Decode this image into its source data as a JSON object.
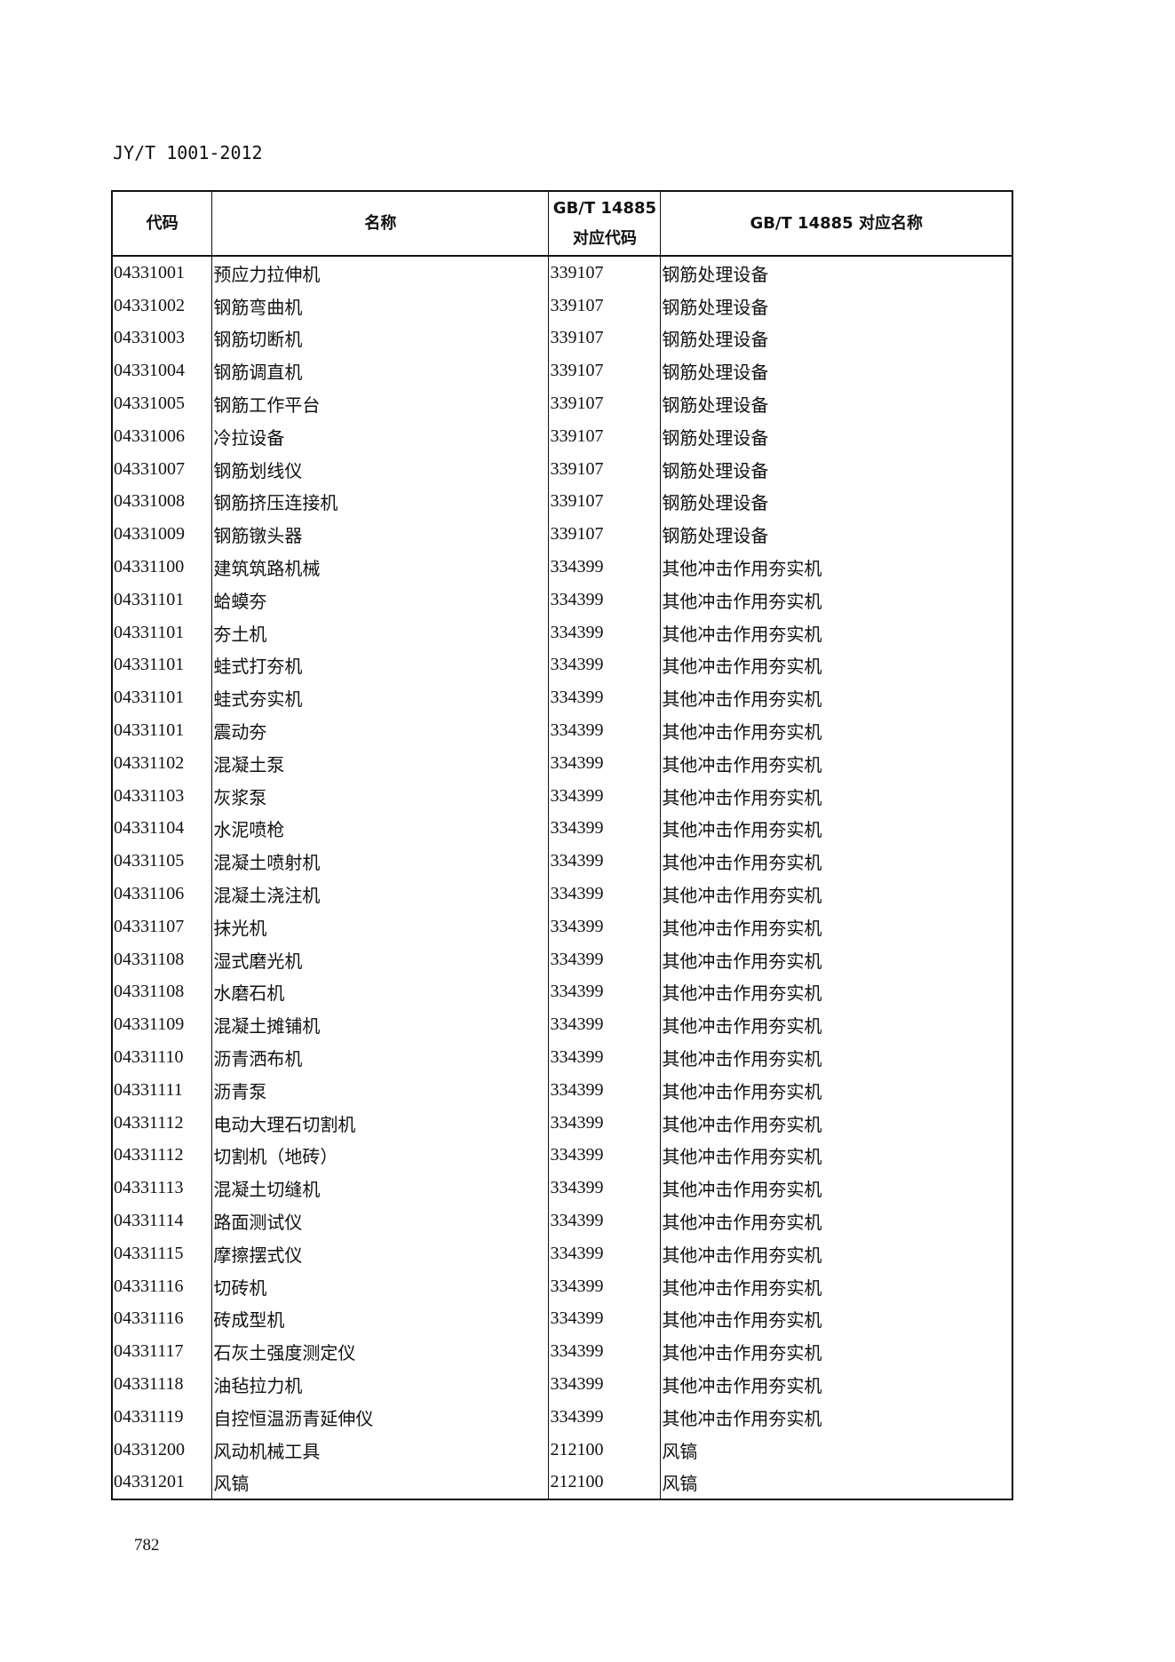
{
  "header": {
    "doc_id": "JY/T 1001-2012"
  },
  "table": {
    "columns": [
      "代码",
      "名称",
      "GB/T 14885\n对应代码",
      "GB/T 14885 对应名称"
    ],
    "rows": [
      [
        "04331001",
        "预应力拉伸机",
        "339107",
        "钢筋处理设备"
      ],
      [
        "04331002",
        "钢筋弯曲机",
        "339107",
        "钢筋处理设备"
      ],
      [
        "04331003",
        "钢筋切断机",
        "339107",
        "钢筋处理设备"
      ],
      [
        "04331004",
        "钢筋调直机",
        "339107",
        "钢筋处理设备"
      ],
      [
        "04331005",
        "钢筋工作平台",
        "339107",
        "钢筋处理设备"
      ],
      [
        "04331006",
        "冷拉设备",
        "339107",
        "钢筋处理设备"
      ],
      [
        "04331007",
        "钢筋划线仪",
        "339107",
        "钢筋处理设备"
      ],
      [
        "04331008",
        "钢筋挤压连接机",
        "339107",
        "钢筋处理设备"
      ],
      [
        "04331009",
        "钢筋镦头器",
        "339107",
        "钢筋处理设备"
      ],
      [
        "04331100",
        "建筑筑路机械",
        "334399",
        "其他冲击作用夯实机"
      ],
      [
        "04331101",
        "蛤蟆夯",
        "334399",
        "其他冲击作用夯实机"
      ],
      [
        "04331101",
        "夯土机",
        "334399",
        "其他冲击作用夯实机"
      ],
      [
        "04331101",
        "蛙式打夯机",
        "334399",
        "其他冲击作用夯实机"
      ],
      [
        "04331101",
        "蛙式夯实机",
        "334399",
        "其他冲击作用夯实机"
      ],
      [
        "04331101",
        "震动夯",
        "334399",
        "其他冲击作用夯实机"
      ],
      [
        "04331102",
        "混凝土泵",
        "334399",
        "其他冲击作用夯实机"
      ],
      [
        "04331103",
        "灰浆泵",
        "334399",
        "其他冲击作用夯实机"
      ],
      [
        "04331104",
        "水泥喷枪",
        "334399",
        "其他冲击作用夯实机"
      ],
      [
        "04331105",
        "混凝土喷射机",
        "334399",
        "其他冲击作用夯实机"
      ],
      [
        "04331106",
        "混凝土浇注机",
        "334399",
        "其他冲击作用夯实机"
      ],
      [
        "04331107",
        "抹光机",
        "334399",
        "其他冲击作用夯实机"
      ],
      [
        "04331108",
        "湿式磨光机",
        "334399",
        "其他冲击作用夯实机"
      ],
      [
        "04331108",
        "水磨石机",
        "334399",
        "其他冲击作用夯实机"
      ],
      [
        "04331109",
        "混凝土摊铺机",
        "334399",
        "其他冲击作用夯实机"
      ],
      [
        "04331110",
        "沥青洒布机",
        "334399",
        "其他冲击作用夯实机"
      ],
      [
        "04331111",
        "沥青泵",
        "334399",
        "其他冲击作用夯实机"
      ],
      [
        "04331112",
        "电动大理石切割机",
        "334399",
        "其他冲击作用夯实机"
      ],
      [
        "04331112",
        "切割机（地砖）",
        "334399",
        "其他冲击作用夯实机"
      ],
      [
        "04331113",
        "混凝土切缝机",
        "334399",
        "其他冲击作用夯实机"
      ],
      [
        "04331114",
        "路面测试仪",
        "334399",
        "其他冲击作用夯实机"
      ],
      [
        "04331115",
        "摩擦摆式仪",
        "334399",
        "其他冲击作用夯实机"
      ],
      [
        "04331116",
        "切砖机",
        "334399",
        "其他冲击作用夯实机"
      ],
      [
        "04331116",
        "砖成型机",
        "334399",
        "其他冲击作用夯实机"
      ],
      [
        "04331117",
        "石灰土强度测定仪",
        "334399",
        "其他冲击作用夯实机"
      ],
      [
        "04331118",
        "油毡拉力机",
        "334399",
        "其他冲击作用夯实机"
      ],
      [
        "04331119",
        "自控恒温沥青延伸仪",
        "334399",
        "其他冲击作用夯实机"
      ],
      [
        "04331200",
        "风动机械工具",
        "212100",
        "风镐"
      ],
      [
        "04331201",
        "风镐",
        "212100",
        "风镐"
      ]
    ]
  },
  "footer": {
    "page_number": "782"
  }
}
